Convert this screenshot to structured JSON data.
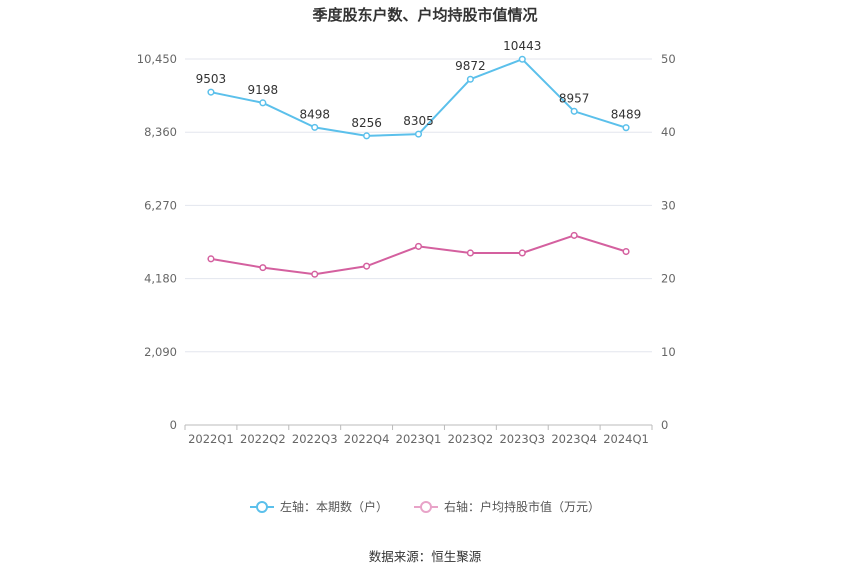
{
  "chart_data": {
    "type": "line",
    "title": "季度股东户数、户均持股市值情况",
    "categories": [
      "2022Q1",
      "2022Q2",
      "2022Q3",
      "2022Q4",
      "2023Q1",
      "2023Q2",
      "2023Q3",
      "2023Q4",
      "2024Q1"
    ],
    "left_axis": {
      "ticks": [
        "0",
        "2,090",
        "4,180",
        "6,270",
        "8,360",
        "10,450"
      ],
      "ylim": [
        0,
        10450
      ]
    },
    "right_axis": {
      "ticks": [
        "0",
        "10",
        "20",
        "30",
        "40",
        "50"
      ],
      "ylim": [
        0,
        50
      ]
    },
    "series": [
      {
        "name": "左轴：本期数（户）",
        "axis": "left",
        "color": "#5bc0eb",
        "values": [
          9503,
          9198,
          8498,
          8256,
          8305,
          9872,
          10443,
          8957,
          8489
        ],
        "labels": [
          "9503",
          "9198",
          "8498",
          "8256",
          "8305",
          "9872",
          "10443",
          "8957",
          "8489"
        ]
      },
      {
        "name": "右轴：户均持股市值（万元）",
        "axis": "right",
        "color": "#d4609f",
        "values": [
          22.7,
          21.5,
          20.6,
          21.7,
          24.4,
          23.5,
          23.5,
          25.9,
          23.7
        ]
      }
    ],
    "grid": true,
    "legend_position": "bottom"
  },
  "source": "数据来源：恒生聚源"
}
